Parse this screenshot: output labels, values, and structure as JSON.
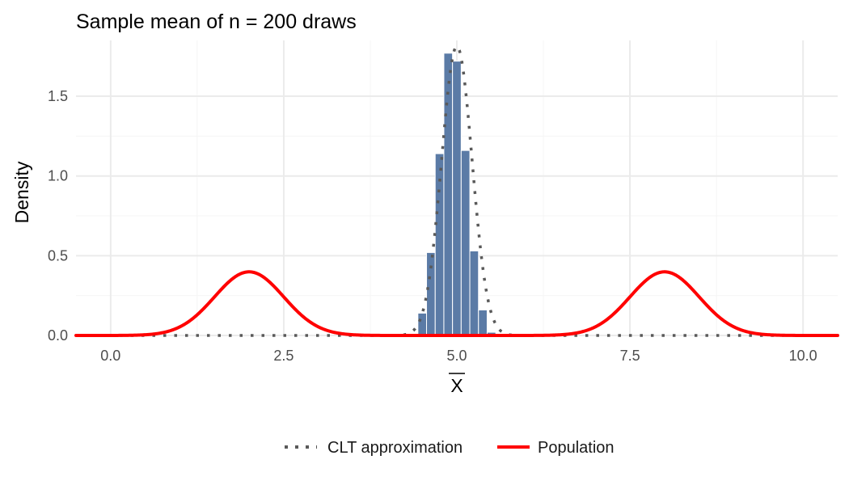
{
  "chart_data": {
    "type": "bar",
    "title": "Sample mean of n = 200 draws",
    "xlabel": "X",
    "ylabel": "Density",
    "xlim": [
      -0.5,
      10.5
    ],
    "ylim": [
      0,
      1.85
    ],
    "x_ticks": [
      0.0,
      2.5,
      5.0,
      7.5,
      10.0
    ],
    "x_tick_labels": [
      "0.0",
      "2.5",
      "5.0",
      "7.5",
      "10.0"
    ],
    "y_ticks": [
      0.0,
      0.5,
      1.0,
      1.5
    ],
    "y_tick_labels": [
      "0.0",
      "0.5",
      "1.0",
      "1.5"
    ],
    "grid": true,
    "legend_position": "bottom",
    "histogram": {
      "bin_width": 0.125,
      "fill_color": "#5b7ba6",
      "edge_color": "#ffffff",
      "bins": [
        {
          "x": 4.375,
          "density": 0.005
        },
        {
          "x": 4.5,
          "density": 0.14
        },
        {
          "x": 4.625,
          "density": 0.52
        },
        {
          "x": 4.75,
          "density": 1.14
        },
        {
          "x": 4.875,
          "density": 1.77
        },
        {
          "x": 5.0,
          "density": 1.72
        },
        {
          "x": 5.125,
          "density": 1.16
        },
        {
          "x": 5.25,
          "density": 0.53
        },
        {
          "x": 5.375,
          "density": 0.16
        },
        {
          "x": 5.5,
          "density": 0.02
        }
      ]
    },
    "series": [
      {
        "name": "CLT approximation",
        "kind": "normal_density",
        "mean": 5.0,
        "sd": 0.22,
        "color": "#595959",
        "line_style": "dotted"
      },
      {
        "name": "Population",
        "kind": "normal_mixture_density",
        "components": [
          {
            "mean": 2.0,
            "sd": 0.5,
            "weight": 0.5
          },
          {
            "mean": 8.0,
            "sd": 0.5,
            "weight": 0.5
          }
        ],
        "color": "#ff0000",
        "line_style": "solid"
      }
    ]
  }
}
